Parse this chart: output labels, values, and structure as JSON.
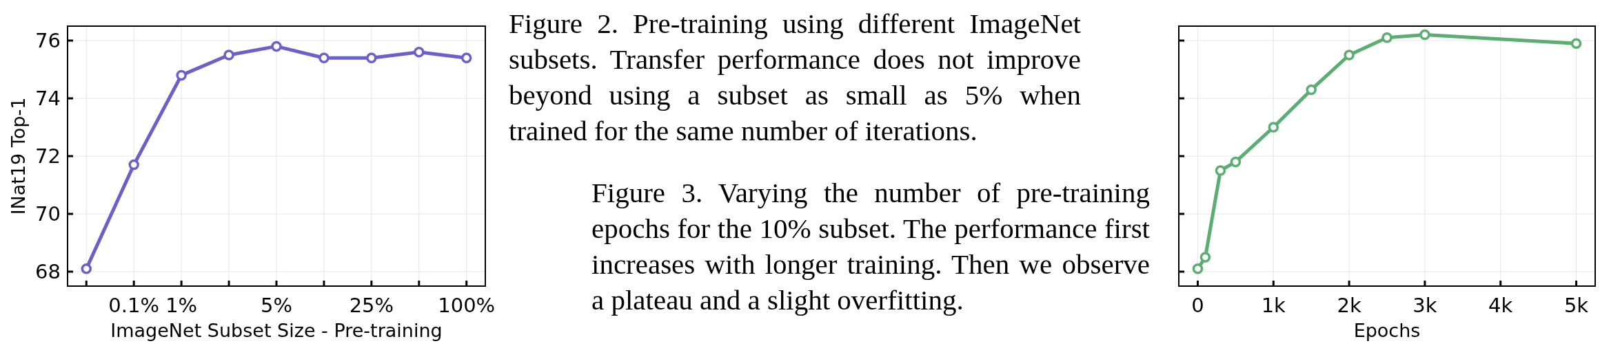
{
  "chart_data": [
    {
      "type": "line",
      "xlabel": "ImageNet Subset Size - Pre-training",
      "ylabel": "INat19 Top-1",
      "categories": [
        null,
        "0.1%",
        "1%",
        null,
        "5%",
        null,
        "25%",
        null,
        "100%"
      ],
      "series": [
        {
          "color": "#6a5fcb",
          "values": [
            68.1,
            71.7,
            74.8,
            75.5,
            75.8,
            75.4,
            75.4,
            75.6,
            75.4
          ]
        }
      ],
      "ylim": [
        67.5,
        76.5
      ],
      "yticks": [
        68,
        70,
        72,
        74,
        76
      ],
      "grid": true,
      "marker": "circle"
    },
    {
      "type": "other",
      "annotations": [
        "Figure 2. Pre-training using different ImageNet subsets. Transfer performance does not improve beyond using a subset as small as 5% when trained for the same number of iterations.",
        "Figure 3. Varying the number of pre-training epochs for the 10% subset. The performance first increases with longer training. Then we observe a plateau and a slight overfitting."
      ]
    },
    {
      "type": "line",
      "xlabel": "Epochs",
      "x": [
        0,
        100,
        300,
        500,
        1000,
        1500,
        2000,
        2500,
        3000,
        5000
      ],
      "series": [
        {
          "color": "#5aae72",
          "values": [
            68.1,
            68.5,
            71.5,
            71.8,
            73.0,
            74.3,
            75.5,
            76.1,
            76.2,
            75.9
          ]
        }
      ],
      "xlim": [
        -250,
        5250
      ],
      "xticks": [
        0,
        {
          "value": 1000,
          "label": "1k"
        },
        {
          "value": 2000,
          "label": "2k"
        },
        {
          "value": 3000,
          "label": "3k"
        },
        {
          "value": 4000,
          "label": "4k"
        },
        {
          "value": 5000,
          "label": "5k"
        }
      ],
      "ylim": [
        67.5,
        76.5
      ],
      "yticks": [
        68,
        70,
        72,
        74,
        76
      ],
      "tick_labels": "x",
      "grid": true,
      "marker": "circle"
    }
  ]
}
